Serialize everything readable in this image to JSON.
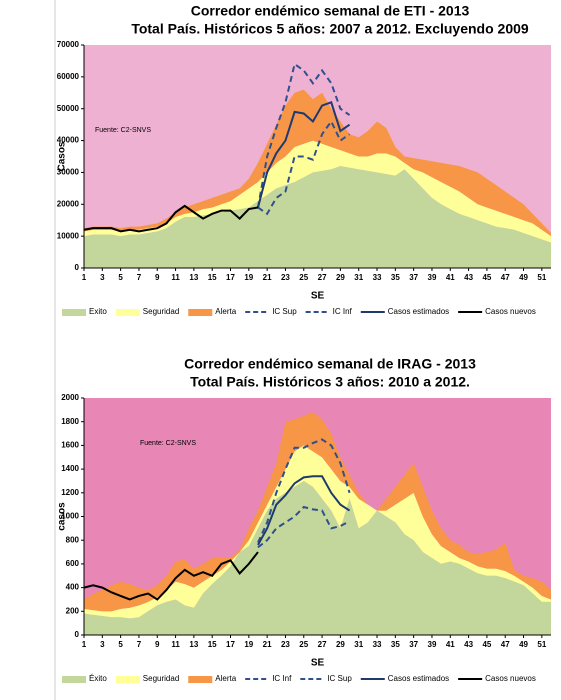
{
  "chart_data": [
    {
      "type": "area",
      "title": "Corredor endémico semanal de ETI - 2013",
      "subtitle": "Total País. Históricos 5 años: 2007 a 2012. Excluyendo 2009",
      "annotation": "Fuente: C2-SNVS",
      "xlabel": "SE",
      "ylabel": "Casos",
      "plot_color": "#efb1d1",
      "x": [
        1,
        2,
        3,
        4,
        5,
        6,
        7,
        8,
        9,
        10,
        11,
        12,
        13,
        14,
        15,
        16,
        17,
        18,
        19,
        20,
        21,
        22,
        23,
        24,
        25,
        26,
        27,
        28,
        29,
        30,
        31,
        32,
        33,
        34,
        35,
        36,
        37,
        38,
        39,
        40,
        41,
        42,
        43,
        44,
        45,
        46,
        47,
        48,
        49,
        50,
        51,
        52
      ],
      "xlim": [
        1,
        52
      ],
      "xticks": [
        1,
        3,
        5,
        7,
        9,
        11,
        13,
        15,
        17,
        19,
        21,
        23,
        25,
        27,
        29,
        31,
        33,
        35,
        37,
        39,
        41,
        43,
        45,
        47,
        49,
        51
      ],
      "ylim": [
        0,
        70000
      ],
      "yticks": [
        0,
        10000,
        20000,
        30000,
        40000,
        50000,
        60000,
        70000
      ],
      "series": [
        {
          "name": "Exito",
          "kind": "area",
          "color": "#c3d69b",
          "values": [
            10000,
            10500,
            10500,
            10500,
            10000,
            10500,
            10500,
            11000,
            11500,
            12500,
            14500,
            16000,
            16000,
            16500,
            17000,
            17500,
            18000,
            18500,
            19000,
            21000,
            23000,
            25000,
            26000,
            27000,
            28500,
            30000,
            30500,
            31000,
            32000,
            31500,
            31000,
            30500,
            30000,
            29500,
            29000,
            31000,
            28000,
            25000,
            22000,
            20000,
            18500,
            17000,
            16000,
            15000,
            14000,
            13000,
            12500,
            12000,
            11000,
            10000,
            9000,
            8000
          ]
        },
        {
          "name": "Seguridad",
          "kind": "area",
          "color": "#ffff99",
          "values": [
            1500,
            1500,
            1500,
            1500,
            1500,
            1500,
            1500,
            1500,
            1500,
            1500,
            1500,
            1000,
            1500,
            2000,
            2000,
            2500,
            3000,
            4500,
            6000,
            6000,
            7000,
            8000,
            9000,
            11000,
            10500,
            10000,
            8500,
            7000,
            5000,
            4500,
            4000,
            4500,
            6000,
            6500,
            6000,
            2000,
            3000,
            5000,
            6500,
            7000,
            7000,
            7000,
            6000,
            5000,
            5000,
            5000,
            4500,
            4000,
            4000,
            4000,
            3000,
            2000
          ]
        },
        {
          "name": "Alerta",
          "kind": "area",
          "color": "#f79646",
          "values": [
            1000,
            1000,
            1000,
            1000,
            1000,
            1000,
            1000,
            1000,
            1000,
            1500,
            1500,
            2000,
            2500,
            2500,
            3000,
            3000,
            3000,
            2000,
            3000,
            6000,
            9000,
            12000,
            16000,
            17000,
            17000,
            13000,
            16000,
            12000,
            9000,
            6000,
            6000,
            8000,
            10000,
            8000,
            3000,
            2000,
            3500,
            4000,
            5000,
            6000,
            7000,
            8000,
            9000,
            10000,
            9000,
            8000,
            7000,
            6000,
            5000,
            3000,
            2000,
            1000
          ]
        },
        {
          "name": "IC Sup",
          "kind": "line",
          "dash": true,
          "color": "#2f4f8f",
          "values": [
            null,
            null,
            null,
            null,
            null,
            null,
            null,
            null,
            null,
            null,
            null,
            null,
            null,
            null,
            null,
            null,
            null,
            null,
            null,
            19000,
            35000,
            44000,
            52000,
            64000,
            62000,
            58000,
            62000,
            58000,
            50000,
            48000,
            null,
            null,
            null,
            null,
            null,
            null,
            null,
            null,
            null,
            null,
            null,
            null,
            null,
            null,
            null,
            null,
            null,
            null,
            null,
            null,
            null,
            null
          ]
        },
        {
          "name": "IC Inf",
          "kind": "line",
          "dash": true,
          "color": "#2f4f8f",
          "values": [
            null,
            null,
            null,
            null,
            null,
            null,
            null,
            null,
            null,
            null,
            null,
            null,
            null,
            null,
            null,
            null,
            null,
            null,
            null,
            19000,
            17000,
            22000,
            24000,
            35000,
            35000,
            34000,
            42000,
            46000,
            40000,
            42000,
            null,
            null,
            null,
            null,
            null,
            null,
            null,
            null,
            null,
            null,
            null,
            null,
            null,
            null,
            null,
            null,
            null,
            null,
            null,
            null,
            null,
            null
          ]
        },
        {
          "name": "Casos estimados",
          "kind": "line",
          "color": "#1f3a6e",
          "values": [
            null,
            null,
            null,
            null,
            null,
            null,
            null,
            null,
            null,
            null,
            null,
            null,
            null,
            null,
            null,
            null,
            null,
            null,
            null,
            19000,
            30000,
            36000,
            40000,
            49000,
            48500,
            46000,
            51000,
            52000,
            43000,
            45000,
            null,
            null,
            null,
            null,
            null,
            null,
            null,
            null,
            null,
            null,
            null,
            null,
            null,
            null,
            null,
            null,
            null,
            null,
            null,
            null,
            null,
            null
          ]
        },
        {
          "name": "Casos nuevos",
          "kind": "line",
          "color": "#000000",
          "values": [
            12000,
            12500,
            12500,
            12500,
            11500,
            12000,
            11500,
            12000,
            12500,
            14000,
            17500,
            19500,
            17500,
            15500,
            17000,
            18000,
            18000,
            15500,
            18500,
            19000,
            null,
            null,
            null,
            null,
            null,
            null,
            null,
            null,
            null,
            null,
            null,
            null,
            null,
            null,
            null,
            null,
            null,
            null,
            null,
            null,
            null,
            null,
            null,
            null,
            null,
            null,
            null,
            null,
            null,
            null,
            null,
            null
          ]
        }
      ]
    },
    {
      "type": "area",
      "title": "Corredor endémico semanal de IRAG - 2013",
      "subtitle": "Total País. Históricos 3 años: 2010 a 2012.",
      "annotation": "Fuente: C2-SNVS",
      "xlabel": "SE",
      "ylabel": "casos",
      "plot_color": "#e886b6",
      "x": [
        1,
        2,
        3,
        4,
        5,
        6,
        7,
        8,
        9,
        10,
        11,
        12,
        13,
        14,
        15,
        16,
        17,
        18,
        19,
        20,
        21,
        22,
        23,
        24,
        25,
        26,
        27,
        28,
        29,
        30,
        31,
        32,
        33,
        34,
        35,
        36,
        37,
        38,
        39,
        40,
        41,
        42,
        43,
        44,
        45,
        46,
        47,
        48,
        49,
        50,
        51,
        52
      ],
      "xlim": [
        1,
        52
      ],
      "xticks": [
        1,
        3,
        5,
        7,
        9,
        11,
        13,
        15,
        17,
        19,
        21,
        23,
        25,
        27,
        29,
        31,
        33,
        35,
        37,
        39,
        41,
        43,
        45,
        47,
        49,
        51
      ],
      "ylim": [
        0,
        2000
      ],
      "yticks": [
        0,
        200,
        400,
        600,
        800,
        1000,
        1200,
        1400,
        1600,
        1800,
        2000
      ],
      "series": [
        {
          "name": "Éxito",
          "kind": "area",
          "color": "#c3d69b",
          "values": [
            180,
            170,
            160,
            150,
            150,
            140,
            150,
            200,
            250,
            280,
            300,
            250,
            230,
            350,
            430,
            500,
            580,
            700,
            750,
            900,
            1050,
            1150,
            1200,
            1250,
            1300,
            1250,
            1150,
            1050,
            900,
            1150,
            900,
            950,
            1050,
            1000,
            950,
            850,
            800,
            700,
            650,
            600,
            620,
            600,
            560,
            520,
            500,
            500,
            480,
            450,
            420,
            350,
            280,
            280
          ]
        },
        {
          "name": "Seguridad",
          "kind": "area",
          "color": "#ffff99",
          "values": [
            40,
            40,
            40,
            50,
            70,
            90,
            100,
            80,
            70,
            100,
            150,
            180,
            170,
            100,
            70,
            50,
            40,
            0,
            50,
            50,
            50,
            100,
            200,
            300,
            300,
            300,
            350,
            350,
            400,
            100,
            250,
            150,
            0,
            50,
            150,
            300,
            400,
            300,
            200,
            150,
            80,
            50,
            60,
            60,
            60,
            60,
            60,
            50,
            30,
            50,
            50,
            20
          ]
        },
        {
          "name": "Alerta",
          "kind": "area",
          "color": "#f79646",
          "values": [
            80,
            140,
            180,
            220,
            230,
            200,
            150,
            100,
            100,
            120,
            170,
            210,
            160,
            150,
            150,
            100,
            30,
            20,
            100,
            100,
            150,
            200,
            400,
            270,
            250,
            330,
            320,
            300,
            200,
            100,
            50,
            0,
            0,
            100,
            150,
            200,
            250,
            250,
            200,
            150,
            100,
            110,
            80,
            100,
            140,
            160,
            240,
            50,
            50,
            80,
            120,
            80
          ]
        },
        {
          "name": "IC Inf",
          "kind": "line",
          "dash": true,
          "color": "#2f4f8f",
          "values": [
            null,
            null,
            null,
            null,
            null,
            null,
            null,
            null,
            null,
            null,
            null,
            null,
            null,
            null,
            null,
            null,
            null,
            null,
            null,
            740,
            800,
            900,
            950,
            1000,
            1080,
            1060,
            1050,
            900,
            920,
            960,
            null,
            null,
            null,
            null,
            null,
            null,
            null,
            null,
            null,
            null,
            null,
            null,
            null,
            null,
            null,
            null,
            null,
            null,
            null,
            null,
            null,
            null
          ]
        },
        {
          "name": "IC Sup",
          "kind": "line",
          "dash": true,
          "color": "#2f4f8f",
          "values": [
            null,
            null,
            null,
            null,
            null,
            null,
            null,
            null,
            null,
            null,
            null,
            null,
            null,
            null,
            null,
            null,
            null,
            null,
            null,
            780,
            950,
            1200,
            1400,
            1580,
            1580,
            1620,
            1650,
            1600,
            1450,
            1200,
            null,
            null,
            null,
            null,
            null,
            null,
            null,
            null,
            null,
            null,
            null,
            null,
            null,
            null,
            null,
            null,
            null,
            null,
            null,
            null,
            null,
            null
          ]
        },
        {
          "name": "Casos estimados",
          "kind": "line",
          "color": "#1f3a6e",
          "values": [
            null,
            null,
            null,
            null,
            null,
            null,
            null,
            null,
            null,
            null,
            null,
            null,
            null,
            null,
            null,
            null,
            null,
            null,
            null,
            760,
            900,
            1100,
            1180,
            1280,
            1330,
            1340,
            1340,
            1200,
            1100,
            1050,
            null,
            null,
            null,
            null,
            null,
            null,
            null,
            null,
            null,
            null,
            null,
            null,
            null,
            null,
            null,
            null,
            null,
            null,
            null,
            null,
            null,
            null
          ]
        },
        {
          "name": "Casos nuevos",
          "kind": "line",
          "color": "#000000",
          "values": [
            400,
            420,
            400,
            360,
            330,
            300,
            330,
            350,
            300,
            380,
            480,
            550,
            500,
            530,
            500,
            600,
            630,
            520,
            600,
            700,
            null,
            null,
            null,
            null,
            null,
            null,
            null,
            null,
            null,
            null,
            null,
            null,
            null,
            null,
            null,
            null,
            null,
            null,
            null,
            null,
            null,
            null,
            null,
            null,
            null,
            null,
            null,
            null,
            null,
            null,
            null,
            null
          ]
        }
      ]
    }
  ]
}
